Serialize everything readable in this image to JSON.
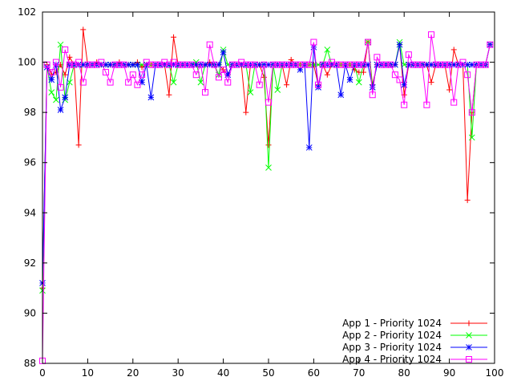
{
  "chart_data": {
    "type": "line",
    "title": "",
    "xlabel": "",
    "ylabel": "",
    "xlim": [
      0,
      100
    ],
    "ylim": [
      88,
      102
    ],
    "xticks": [
      "0",
      "10",
      "20",
      "30",
      "40",
      "50",
      "60",
      "70",
      "80",
      "90",
      "100"
    ],
    "yticks": [
      "88",
      "90",
      "92",
      "94",
      "96",
      "98",
      "100",
      "102"
    ],
    "grid": false,
    "legend_position": "bottom-right",
    "x": [
      0,
      1,
      2,
      3,
      4,
      5,
      6,
      7,
      8,
      9,
      10,
      11,
      12,
      13,
      14,
      15,
      16,
      17,
      18,
      19,
      20,
      21,
      22,
      23,
      24,
      25,
      26,
      27,
      28,
      29,
      30,
      31,
      32,
      33,
      34,
      35,
      36,
      37,
      38,
      39,
      40,
      41,
      42,
      43,
      44,
      45,
      46,
      47,
      48,
      49,
      50,
      51,
      52,
      53,
      54,
      55,
      56,
      57,
      58,
      59,
      60,
      61,
      62,
      63,
      64,
      65,
      66,
      67,
      68,
      69,
      70,
      71,
      72,
      73,
      74,
      75,
      76,
      77,
      78,
      79,
      80,
      81,
      82,
      83,
      84,
      85,
      86,
      87,
      88,
      89,
      90,
      91,
      92,
      93,
      94,
      95,
      96,
      97,
      98,
      99
    ],
    "series": [
      {
        "name": "App 1 - Priority 1024",
        "color": "#ff0000",
        "marker": "plus",
        "values": [
          91.0,
          99.9,
          99.5,
          99.6,
          99.9,
          99.5,
          100.2,
          99.9,
          96.7,
          101.3,
          99.9,
          99.9,
          100.0,
          99.9,
          99.9,
          99.9,
          99.9,
          100.0,
          99.9,
          99.9,
          99.9,
          100.0,
          99.8,
          99.9,
          99.9,
          99.9,
          99.9,
          99.9,
          98.7,
          101.0,
          99.9,
          99.9,
          99.9,
          99.9,
          99.9,
          99.9,
          99.9,
          100.0,
          99.9,
          99.9,
          99.7,
          99.5,
          99.9,
          99.9,
          99.9,
          98.0,
          99.9,
          99.9,
          99.9,
          99.4,
          96.7,
          99.9,
          99.9,
          99.9,
          99.1,
          100.1,
          99.9,
          99.9,
          99.9,
          99.9,
          99.9,
          99.1,
          99.9,
          99.5,
          99.9,
          99.9,
          99.9,
          99.9,
          99.9,
          99.7,
          99.6,
          99.6,
          100.8,
          99.1,
          99.9,
          99.9,
          99.9,
          99.9,
          99.9,
          100.7,
          98.7,
          99.9,
          99.9,
          99.9,
          99.9,
          99.9,
          99.2,
          99.9,
          99.9,
          99.9,
          98.9,
          100.5,
          99.9,
          99.9,
          94.5,
          98.0,
          99.9,
          99.9,
          99.9,
          100.7
        ]
      },
      {
        "name": "App 2 - Priority 1024",
        "color": "#00ff00",
        "marker": "x",
        "values": [
          90.9,
          99.8,
          98.8,
          98.5,
          100.7,
          98.5,
          99.2,
          99.9,
          99.9,
          99.9,
          99.9,
          99.9,
          99.9,
          99.9,
          99.9,
          99.9,
          99.9,
          99.9,
          99.9,
          99.9,
          99.9,
          99.9,
          99.9,
          99.9,
          99.9,
          99.9,
          99.9,
          99.9,
          99.9,
          99.2,
          99.9,
          99.9,
          99.9,
          99.9,
          100.0,
          99.2,
          99.9,
          99.9,
          99.9,
          99.5,
          100.5,
          99.9,
          99.9,
          99.9,
          99.9,
          99.9,
          98.8,
          99.9,
          99.9,
          99.9,
          95.8,
          99.9,
          98.9,
          99.9,
          99.9,
          99.9,
          99.9,
          99.9,
          99.9,
          99.9,
          99.9,
          99.9,
          99.9,
          100.5,
          99.9,
          99.9,
          99.9,
          99.9,
          99.9,
          99.9,
          99.2,
          99.9,
          100.8,
          99.0,
          99.9,
          99.9,
          99.9,
          99.9,
          99.9,
          100.8,
          99.9,
          99.9,
          99.9,
          99.9,
          99.9,
          99.9,
          99.9,
          99.9,
          99.9,
          99.9,
          99.9,
          99.9,
          99.9,
          99.9,
          99.9,
          97.0,
          99.9,
          99.9,
          99.9,
          100.7
        ]
      },
      {
        "name": "App 3 - Priority 1024",
        "color": "#0000ff",
        "marker": "star",
        "values": [
          91.2,
          99.8,
          99.3,
          99.9,
          98.1,
          98.6,
          99.9,
          99.9,
          99.9,
          99.9,
          99.9,
          99.9,
          99.9,
          99.9,
          99.9,
          99.9,
          99.9,
          99.9,
          99.9,
          99.9,
          99.9,
          99.9,
          99.2,
          99.9,
          98.6,
          99.9,
          99.9,
          99.9,
          99.9,
          99.9,
          99.9,
          99.9,
          99.9,
          99.9,
          99.9,
          99.9,
          99.9,
          99.9,
          99.9,
          99.9,
          100.4,
          99.5,
          99.9,
          99.9,
          99.9,
          99.9,
          99.9,
          99.9,
          99.9,
          99.9,
          99.9,
          99.9,
          99.9,
          99.9,
          99.9,
          99.9,
          99.9,
          99.7,
          99.9,
          96.6,
          100.6,
          99.0,
          99.9,
          99.9,
          99.9,
          99.9,
          98.7,
          99.9,
          99.3,
          99.9,
          99.9,
          99.9,
          99.9,
          99.0,
          99.9,
          99.9,
          99.9,
          99.9,
          99.9,
          100.7,
          99.1,
          99.9,
          99.9,
          99.9,
          99.9,
          99.9,
          99.9,
          99.9,
          99.9,
          99.9,
          99.9,
          99.9,
          99.9,
          99.9,
          99.9,
          99.9,
          99.9,
          99.9,
          99.9,
          100.7
        ]
      },
      {
        "name": "App 4 - Priority 1024",
        "color": "#ff00ff",
        "marker": "box",
        "values": [
          88.1,
          99.9,
          99.6,
          100.0,
          99.0,
          100.5,
          99.9,
          99.9,
          100.0,
          99.2,
          99.9,
          99.9,
          99.9,
          100.0,
          99.6,
          99.2,
          99.9,
          99.9,
          99.9,
          99.2,
          99.5,
          99.1,
          99.5,
          100.0,
          99.9,
          99.9,
          99.9,
          100.0,
          99.9,
          100.0,
          99.9,
          99.9,
          99.9,
          99.9,
          99.5,
          99.9,
          98.8,
          100.7,
          99.9,
          99.4,
          99.7,
          99.2,
          99.9,
          99.9,
          100.0,
          99.9,
          99.9,
          99.9,
          99.1,
          99.9,
          98.4,
          99.9,
          99.9,
          99.9,
          99.9,
          99.9,
          99.9,
          99.9,
          99.9,
          99.9,
          100.8,
          99.1,
          99.9,
          99.9,
          100.0,
          99.9,
          99.9,
          99.9,
          99.9,
          99.9,
          99.9,
          99.9,
          100.8,
          98.7,
          100.2,
          99.9,
          99.9,
          99.9,
          99.5,
          99.3,
          98.3,
          100.3,
          99.9,
          99.9,
          99.9,
          98.3,
          101.1,
          99.9,
          99.9,
          99.9,
          99.9,
          98.4,
          99.9,
          100.0,
          99.5,
          98.0,
          99.9,
          99.9,
          99.9,
          100.7
        ]
      }
    ]
  }
}
